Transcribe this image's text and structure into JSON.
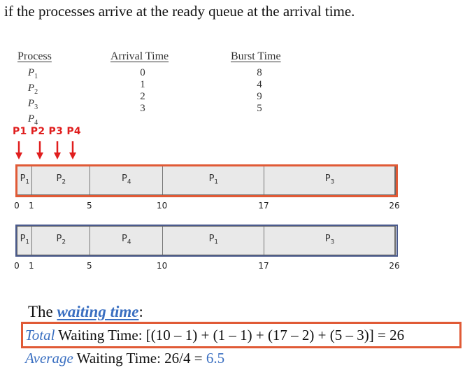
{
  "intro": "if the processes arrive at the ready queue at the arrival time.",
  "table": {
    "headers": {
      "process": "Process",
      "arrival": "Arrival Time",
      "burst": "Burst Time"
    },
    "rows": [
      {
        "p": "P",
        "sub": "1",
        "arrival": "0",
        "burst": "8"
      },
      {
        "p": "P",
        "sub": "2",
        "arrival": "1",
        "burst": "4"
      },
      {
        "p": "P",
        "sub": "3",
        "arrival": "2",
        "burst": "9"
      },
      {
        "p": "P",
        "sub": "4",
        "arrival": "3",
        "burst": "5"
      }
    ]
  },
  "arrival_labels": "P1 P2 P3 P4",
  "arrow_color": "#e01e1e",
  "gantt": {
    "segments": [
      {
        "p": "P",
        "sub": "1",
        "start": 0,
        "end": 1
      },
      {
        "p": "P",
        "sub": "2",
        "start": 1,
        "end": 5
      },
      {
        "p": "P",
        "sub": "4",
        "start": 5,
        "end": 10
      },
      {
        "p": "P",
        "sub": "1",
        "start": 10,
        "end": 17
      },
      {
        "p": "P",
        "sub": "3",
        "start": 17,
        "end": 26
      }
    ],
    "ticks": [
      "0",
      "1",
      "5",
      "10",
      "17",
      "26"
    ]
  },
  "waiting": {
    "title_prefix": "The ",
    "title_emph": "waiting time",
    "title_suffix": ":",
    "total_word": "Total",
    "total_rest": " Waiting Time: [(10 – 1) + (1 – 1) + (17 – 2) + (5 – 3)] = 26",
    "avg_word": "Average",
    "avg_mid": " Waiting Time: 26/4 = ",
    "avg_value": "6.5"
  },
  "colors": {
    "highlight": "#e05a36",
    "accent": "#3a6fc1",
    "frame_blue": "#4a5a8c"
  }
}
